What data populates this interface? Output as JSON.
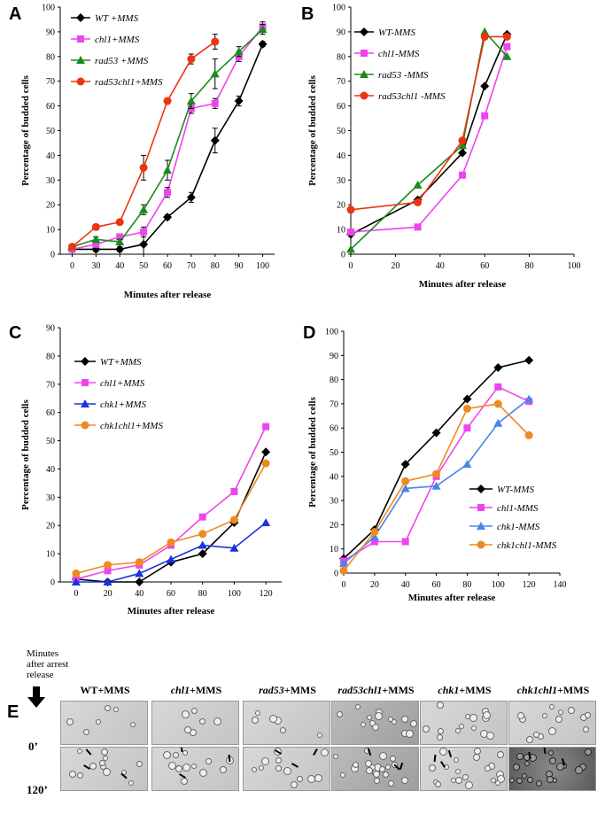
{
  "panels": [
    {
      "letter": "A",
      "type": "line",
      "xlabel": "Minutes after release",
      "ylabel": "Percentage of budded cells",
      "ylim": [
        0,
        100
      ],
      "yticks": [
        0,
        10,
        20,
        30,
        40,
        50,
        60,
        70,
        80,
        90,
        100
      ],
      "x_categorical": true,
      "categories": [
        "0",
        "30",
        "40",
        "50",
        "60",
        "70",
        "80",
        "90",
        "100"
      ],
      "series": [
        {
          "name": "WT +MMS",
          "color": "#000000",
          "marker": "diamond",
          "values": [
            2,
            2,
            2,
            4,
            15,
            23,
            46,
            62,
            85
          ],
          "errors": [
            1,
            1,
            1,
            4,
            1,
            2,
            5,
            2,
            1
          ]
        },
        {
          "name": "chl1+MMS",
          "color": "#ee44ee",
          "marker": "square",
          "values": [
            2,
            4,
            7,
            9,
            25,
            59,
            61,
            80,
            92
          ],
          "errors": [
            1,
            1,
            1,
            2,
            2,
            2,
            2,
            2,
            2
          ]
        },
        {
          "name": "rad53 +MMS",
          "color": "#1a8a1a",
          "marker": "triangle",
          "values": [
            3,
            6,
            5,
            18,
            34,
            62,
            73,
            82,
            91
          ],
          "errors": [
            1,
            1,
            1,
            2,
            4,
            3,
            6,
            2,
            2
          ]
        },
        {
          "name": "rad53chl1+MMS",
          "color": "#ee3311",
          "marker": "circle",
          "values": [
            3,
            11,
            13,
            35,
            62,
            79,
            86,
            null,
            null
          ],
          "errors": [
            1,
            1,
            1,
            5,
            1,
            2,
            3,
            0,
            0
          ]
        }
      ]
    },
    {
      "letter": "B",
      "type": "line",
      "xlabel": "Minutes after release",
      "ylabel": "Percentage of budded cells",
      "ylim": [
        0,
        100
      ],
      "xlim": [
        0,
        100
      ],
      "yticks": [
        0,
        10,
        20,
        30,
        40,
        50,
        60,
        70,
        80,
        90,
        100
      ],
      "xticks": [
        0,
        20,
        40,
        60,
        80,
        100
      ],
      "series": [
        {
          "name": "WT-MMS",
          "color": "#000000",
          "marker": "diamond",
          "x": [
            0,
            30,
            50,
            60,
            70
          ],
          "values": [
            8,
            22,
            41,
            68,
            89
          ]
        },
        {
          "name": "chl1-MMS",
          "color": "#ee44ee",
          "marker": "square",
          "x": [
            0,
            30,
            50,
            60,
            70
          ],
          "values": [
            9,
            11,
            32,
            56,
            84
          ]
        },
        {
          "name": "rad53 -MMS",
          "color": "#1a8a1a",
          "marker": "triangle",
          "x": [
            0,
            30,
            50,
            60,
            70
          ],
          "values": [
            2,
            28,
            44,
            90,
            80
          ]
        },
        {
          "name": "rad53chl1 -MMS",
          "color": "#ee3311",
          "marker": "circle",
          "x": [
            0,
            30,
            50,
            60,
            70
          ],
          "values": [
            18,
            21,
            46,
            88,
            88
          ]
        }
      ]
    },
    {
      "letter": "C",
      "type": "line",
      "xlabel": "Minutes after release",
      "ylabel": "Percentage of budded cells",
      "ylim": [
        0,
        90
      ],
      "yticks": [
        0,
        10,
        20,
        30,
        40,
        50,
        60,
        70,
        80,
        90
      ],
      "x_categorical": true,
      "categories": [
        "0",
        "20",
        "40",
        "60",
        "80",
        "100",
        "120"
      ],
      "series": [
        {
          "name": "WT+MMS",
          "color": "#000000",
          "marker": "diamond",
          "values": [
            1,
            0,
            0,
            7,
            10,
            21,
            46
          ]
        },
        {
          "name": "chl1+MMS",
          "color": "#ee44ee",
          "marker": "square",
          "values": [
            1,
            4,
            6,
            13,
            23,
            32,
            55
          ]
        },
        {
          "name": "chk1+MMS",
          "color": "#1a33dd",
          "marker": "triangle",
          "values": [
            0,
            0,
            3,
            8,
            13,
            12,
            21
          ]
        },
        {
          "name": "chk1chl1+MMS",
          "color": "#ee8a22",
          "marker": "circle",
          "values": [
            3,
            6,
            7,
            14,
            17,
            22,
            42
          ]
        }
      ]
    },
    {
      "letter": "D",
      "type": "line",
      "xlabel": "Minutes after release",
      "ylabel": "Percentage of budded cells",
      "ylim": [
        0,
        100
      ],
      "xlim": [
        0,
        140
      ],
      "yticks": [
        0,
        10,
        20,
        30,
        40,
        50,
        60,
        70,
        80,
        90,
        100
      ],
      "xticks": [
        0,
        20,
        40,
        60,
        80,
        100,
        120,
        140
      ],
      "series": [
        {
          "name": "WT-MMS",
          "color": "#000000",
          "marker": "diamond",
          "x": [
            0,
            20,
            40,
            60,
            80,
            100,
            120
          ],
          "values": [
            6,
            18,
            45,
            58,
            72,
            85,
            88
          ]
        },
        {
          "name": "chl1-MMS",
          "color": "#ee44ee",
          "marker": "square",
          "x": [
            0,
            20,
            40,
            60,
            80,
            100,
            120
          ],
          "values": [
            5,
            13,
            13,
            40,
            60,
            77,
            71
          ]
        },
        {
          "name": "chk1-MMS",
          "color": "#4a86e8",
          "marker": "triangle",
          "x": [
            0,
            20,
            40,
            60,
            80,
            100,
            120
          ],
          "values": [
            4,
            15,
            35,
            36,
            45,
            62,
            72
          ]
        },
        {
          "name": "chk1chl1-MMS",
          "color": "#ee8a22",
          "marker": "circle",
          "x": [
            0,
            20,
            40,
            60,
            80,
            100,
            120
          ],
          "values": [
            1,
            17,
            38,
            41,
            68,
            70,
            57
          ]
        }
      ]
    }
  ],
  "panel_e": {
    "letter": "E",
    "row_header": "Minutes after arrest release",
    "row_labels": [
      "0’",
      "120’"
    ],
    "columns": [
      {
        "name": "WT",
        "suffix": "+MMS",
        "italic": false
      },
      {
        "name": "chl1",
        "suffix": "+MMS",
        "italic": true
      },
      {
        "name": "rad53",
        "suffix": "+MMS",
        "italic": true
      },
      {
        "name": "rad53chl1",
        "suffix": "+MMS",
        "italic": true
      },
      {
        "name": "chk1",
        "suffix": "+MMS",
        "italic": true
      },
      {
        "name": "chk1chl1",
        "suffix": "+MMS",
        "italic": true
      }
    ]
  }
}
